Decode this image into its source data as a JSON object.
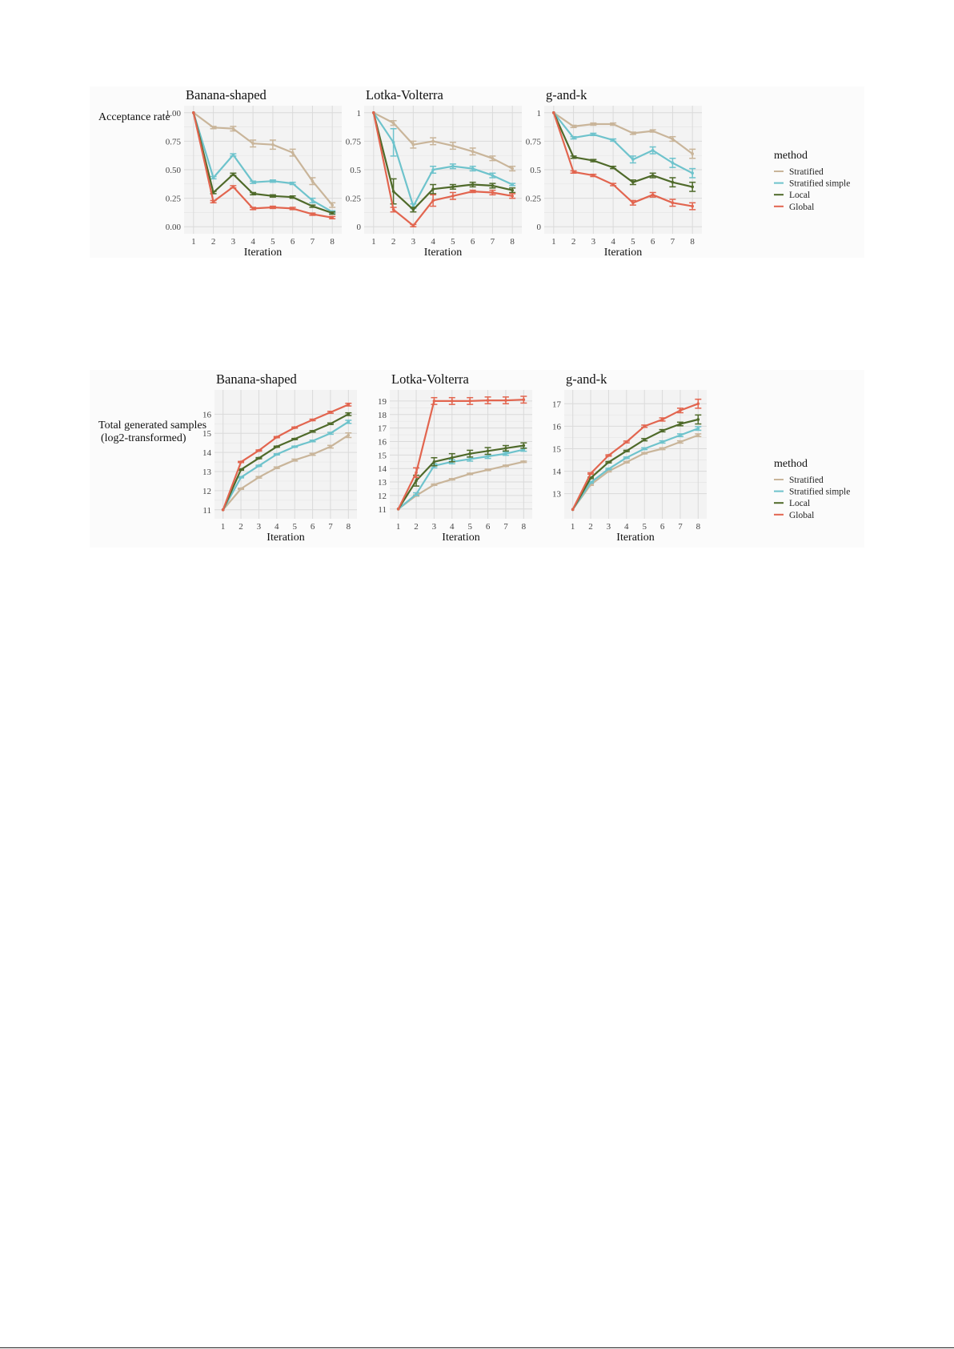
{
  "colors": {
    "Stratified": "#c9b59a",
    "Stratified simple": "#6ec3cc",
    "Local": "#4f6a2a",
    "Global": "#e2654f",
    "panel_bg": "#f4f4f4",
    "grid": "#dcdcdc"
  },
  "legend": {
    "title": "method",
    "items": [
      "Stratified",
      "Stratified simple",
      "Local",
      "Global"
    ]
  },
  "rows": [
    {
      "ylabel": [
        "Acceptance rate"
      ]
    },
    {
      "ylabel": [
        "Total generated samples",
        "(log2-transformed)"
      ]
    }
  ],
  "chart_data": [
    {
      "type": "line",
      "title": "Banana-shaped",
      "xlabel": "Iteration",
      "ylabel": "Acceptance rate",
      "x": [
        1,
        2,
        3,
        4,
        5,
        6,
        7,
        8
      ],
      "ylim": [
        0,
        1
      ],
      "yticks": [
        0,
        0.25,
        0.5,
        0.75,
        1.0
      ],
      "ytick_labels": [
        "0.00",
        "0.25",
        "0.50",
        "0.75",
        "1.00"
      ],
      "series": [
        {
          "name": "Stratified",
          "values": [
            1.0,
            0.87,
            0.86,
            0.73,
            0.72,
            0.65,
            0.4,
            0.19
          ],
          "err": [
            0,
            0.01,
            0.02,
            0.03,
            0.04,
            0.03,
            0.03,
            0.02
          ]
        },
        {
          "name": "Stratified simple",
          "values": [
            1.0,
            0.43,
            0.63,
            0.39,
            0.4,
            0.38,
            0.23,
            0.13
          ],
          "err": [
            0,
            0.01,
            0.01,
            0.01,
            0.01,
            0.01,
            0.02,
            0.01
          ]
        },
        {
          "name": "Local",
          "values": [
            1.0,
            0.3,
            0.46,
            0.29,
            0.27,
            0.26,
            0.18,
            0.12
          ],
          "err": [
            0,
            0.01,
            0.01,
            0.01,
            0.01,
            0.01,
            0.01,
            0.01
          ]
        },
        {
          "name": "Global",
          "values": [
            1.0,
            0.22,
            0.35,
            0.16,
            0.17,
            0.16,
            0.11,
            0.08
          ],
          "err": [
            0,
            0.01,
            0.01,
            0.01,
            0.01,
            0.01,
            0.01,
            0.01
          ]
        }
      ]
    },
    {
      "type": "line",
      "title": "Lotka-Volterra",
      "xlabel": "Iteration",
      "x": [
        1,
        2,
        3,
        4,
        5,
        6,
        7,
        8
      ],
      "ylim": [
        0,
        1
      ],
      "yticks": [
        0,
        0.25,
        0.5,
        0.75,
        1.0
      ],
      "series": [
        {
          "name": "Stratified",
          "values": [
            1.0,
            0.91,
            0.72,
            0.75,
            0.71,
            0.66,
            0.6,
            0.51
          ],
          "err": [
            0,
            0.02,
            0.03,
            0.03,
            0.03,
            0.03,
            0.02,
            0.02
          ]
        },
        {
          "name": "Stratified simple",
          "values": [
            1.0,
            0.74,
            0.18,
            0.5,
            0.53,
            0.51,
            0.45,
            0.37
          ],
          "err": [
            0,
            0.12,
            0.02,
            0.03,
            0.02,
            0.02,
            0.02,
            0.01
          ]
        },
        {
          "name": "Local",
          "values": [
            1.0,
            0.31,
            0.15,
            0.33,
            0.35,
            0.37,
            0.36,
            0.32
          ],
          "err": [
            0,
            0.11,
            0.02,
            0.04,
            0.02,
            0.02,
            0.02,
            0.02
          ]
        },
        {
          "name": "Global",
          "values": [
            1.0,
            0.15,
            0.01,
            0.23,
            0.27,
            0.31,
            0.3,
            0.27
          ],
          "err": [
            0,
            0.02,
            0.01,
            0.05,
            0.03,
            0.01,
            0.02,
            0.02
          ]
        }
      ]
    },
    {
      "type": "line",
      "title": "g-and-k",
      "xlabel": "Iteration",
      "x": [
        1,
        2,
        3,
        4,
        5,
        6,
        7,
        8
      ],
      "ylim": [
        0,
        1
      ],
      "yticks": [
        0,
        0.25,
        0.5,
        0.75,
        1.0
      ],
      "series": [
        {
          "name": "Stratified",
          "values": [
            1.0,
            0.88,
            0.9,
            0.9,
            0.82,
            0.84,
            0.77,
            0.64
          ],
          "err": [
            0,
            0.01,
            0.01,
            0.01,
            0.01,
            0.01,
            0.02,
            0.04
          ]
        },
        {
          "name": "Stratified simple",
          "values": [
            1.0,
            0.78,
            0.81,
            0.76,
            0.59,
            0.67,
            0.56,
            0.47
          ],
          "err": [
            0,
            0.01,
            0.01,
            0.01,
            0.03,
            0.03,
            0.04,
            0.04
          ]
        },
        {
          "name": "Local",
          "values": [
            1.0,
            0.61,
            0.58,
            0.52,
            0.39,
            0.45,
            0.39,
            0.35
          ],
          "err": [
            0,
            0.01,
            0.01,
            0.01,
            0.02,
            0.02,
            0.04,
            0.04
          ]
        },
        {
          "name": "Global",
          "values": [
            1.0,
            0.48,
            0.45,
            0.37,
            0.21,
            0.28,
            0.21,
            0.18
          ],
          "err": [
            0,
            0.01,
            0.01,
            0.01,
            0.02,
            0.02,
            0.03,
            0.03
          ]
        }
      ]
    },
    {
      "type": "line",
      "title": "Banana-shaped",
      "xlabel": "Iteration",
      "ylabel": "Total generated samples (log2-transformed)",
      "x": [
        1,
        2,
        3,
        4,
        5,
        6,
        7,
        8
      ],
      "ylim": [
        10.9,
        16.9
      ],
      "yticks": [
        11,
        12,
        13,
        14,
        15,
        16
      ],
      "series": [
        {
          "name": "Stratified",
          "values": [
            11,
            12.1,
            12.7,
            13.2,
            13.6,
            13.9,
            14.3,
            14.9
          ],
          "err": [
            0,
            0.03,
            0.04,
            0.04,
            0.05,
            0.05,
            0.07,
            0.12
          ]
        },
        {
          "name": "Stratified simple",
          "values": [
            11,
            12.7,
            13.3,
            13.9,
            14.3,
            14.6,
            15.0,
            15.6
          ],
          "err": [
            0,
            0.03,
            0.03,
            0.03,
            0.03,
            0.04,
            0.05,
            0.08
          ]
        },
        {
          "name": "Local",
          "values": [
            11,
            13.1,
            13.7,
            14.3,
            14.7,
            15.1,
            15.5,
            16.0
          ],
          "err": [
            0,
            0.03,
            0.03,
            0.03,
            0.03,
            0.04,
            0.04,
            0.07
          ]
        },
        {
          "name": "Global",
          "values": [
            11,
            13.5,
            14.1,
            14.8,
            15.3,
            15.7,
            16.1,
            16.5
          ],
          "err": [
            0,
            0.03,
            0.03,
            0.03,
            0.03,
            0.04,
            0.05,
            0.07
          ]
        }
      ]
    },
    {
      "type": "line",
      "title": "Lotka-Volterra",
      "xlabel": "Iteration",
      "x": [
        1,
        2,
        3,
        4,
        5,
        6,
        7,
        8
      ],
      "ylim": [
        10.8,
        19.3
      ],
      "yticks": [
        11,
        12,
        13,
        14,
        15,
        16,
        17,
        18,
        19
      ],
      "series": [
        {
          "name": "Stratified",
          "values": [
            11,
            12.0,
            12.8,
            13.2,
            13.6,
            13.9,
            14.2,
            14.5
          ],
          "err": [
            0,
            0.05,
            0.05,
            0.05,
            0.05,
            0.05,
            0.05,
            0.05
          ]
        },
        {
          "name": "Stratified simple",
          "values": [
            11,
            12.1,
            14.2,
            14.5,
            14.7,
            14.9,
            15.1,
            15.4
          ],
          "err": [
            0,
            0.1,
            0.15,
            0.15,
            0.15,
            0.15,
            0.12,
            0.12
          ]
        },
        {
          "name": "Local",
          "values": [
            11,
            13.1,
            14.5,
            14.8,
            15.1,
            15.3,
            15.5,
            15.7
          ],
          "err": [
            0,
            0.4,
            0.3,
            0.3,
            0.25,
            0.25,
            0.2,
            0.2
          ]
        },
        {
          "name": "Global",
          "values": [
            11,
            13.7,
            19.0,
            19.0,
            19.0,
            19.05,
            19.05,
            19.1
          ],
          "err": [
            0,
            0.35,
            0.25,
            0.25,
            0.25,
            0.25,
            0.25,
            0.25
          ]
        }
      ]
    },
    {
      "type": "line",
      "title": "g-and-k",
      "xlabel": "Iteration",
      "x": [
        1,
        2,
        3,
        4,
        5,
        6,
        7,
        8
      ],
      "ylim": [
        12.2,
        17.3
      ],
      "yticks": [
        13,
        14,
        15,
        16,
        17
      ],
      "series": [
        {
          "name": "Stratified",
          "values": [
            12.3,
            13.4,
            14.0,
            14.4,
            14.8,
            15.0,
            15.3,
            15.6
          ],
          "err": [
            0,
            0.03,
            0.03,
            0.03,
            0.03,
            0.04,
            0.05,
            0.06
          ]
        },
        {
          "name": "Stratified simple",
          "values": [
            12.3,
            13.5,
            14.1,
            14.6,
            15.0,
            15.3,
            15.6,
            15.9
          ],
          "err": [
            0,
            0.03,
            0.03,
            0.03,
            0.04,
            0.05,
            0.06,
            0.08
          ]
        },
        {
          "name": "Local",
          "values": [
            12.3,
            13.7,
            14.4,
            14.9,
            15.4,
            15.8,
            16.1,
            16.3
          ],
          "err": [
            0,
            0.03,
            0.03,
            0.03,
            0.05,
            0.05,
            0.08,
            0.2
          ]
        },
        {
          "name": "Global",
          "values": [
            12.3,
            13.9,
            14.7,
            15.3,
            16.0,
            16.3,
            16.7,
            17.0
          ],
          "err": [
            0,
            0.03,
            0.03,
            0.04,
            0.05,
            0.07,
            0.1,
            0.2
          ]
        }
      ]
    }
  ]
}
